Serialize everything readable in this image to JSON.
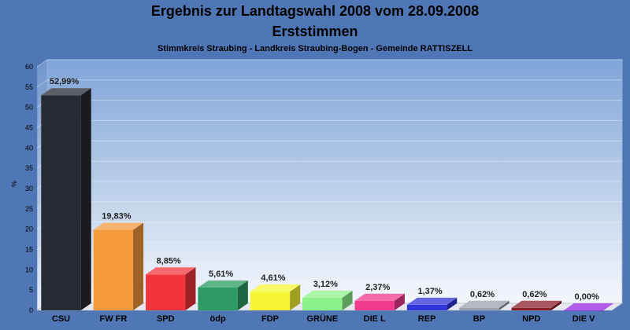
{
  "chart_data": {
    "type": "bar",
    "title": "Ergebnis zur Landtagswahl 2008 vom 28.09.2008",
    "subtitle": "Erststimmen",
    "subtitle2": "Stimmkreis Straubing - Landkreis Straubing-Bogen - Gemeinde RATTISZELL",
    "ylabel": "%",
    "xlabel": "",
    "ylim": [
      0,
      60
    ],
    "yticks": [
      0,
      5,
      10,
      15,
      20,
      25,
      30,
      35,
      40,
      45,
      50,
      55,
      60
    ],
    "grid": true,
    "legend": "none",
    "categories": [
      "CSU",
      "FW FR",
      "SPD",
      "ödp",
      "FDP",
      "GRÜNE",
      "DIE L",
      "REP",
      "BP",
      "NPD",
      "DIE V"
    ],
    "values": [
      52.99,
      19.83,
      8.85,
      5.61,
      4.61,
      3.12,
      2.37,
      1.37,
      0.62,
      0.62,
      0.0
    ],
    "value_labels": [
      "52,99%",
      "19,83%",
      "8,85%",
      "5,61%",
      "4,61%",
      "3,12%",
      "2,37%",
      "1,37%",
      "0,62%",
      "0,62%",
      "0,00%"
    ],
    "colors": [
      "#262a33",
      "#f39a3c",
      "#f2353b",
      "#2b9b63",
      "#f6f533",
      "#8df18a",
      "#f03b8f",
      "#2f35d8",
      "#9aa0ae",
      "#8a1e2a",
      "#9a26e0"
    ]
  },
  "colors": {
    "background": "#4f77b5",
    "plot_top": "#7fa5d8",
    "plot_bottom": "#ffffff"
  }
}
